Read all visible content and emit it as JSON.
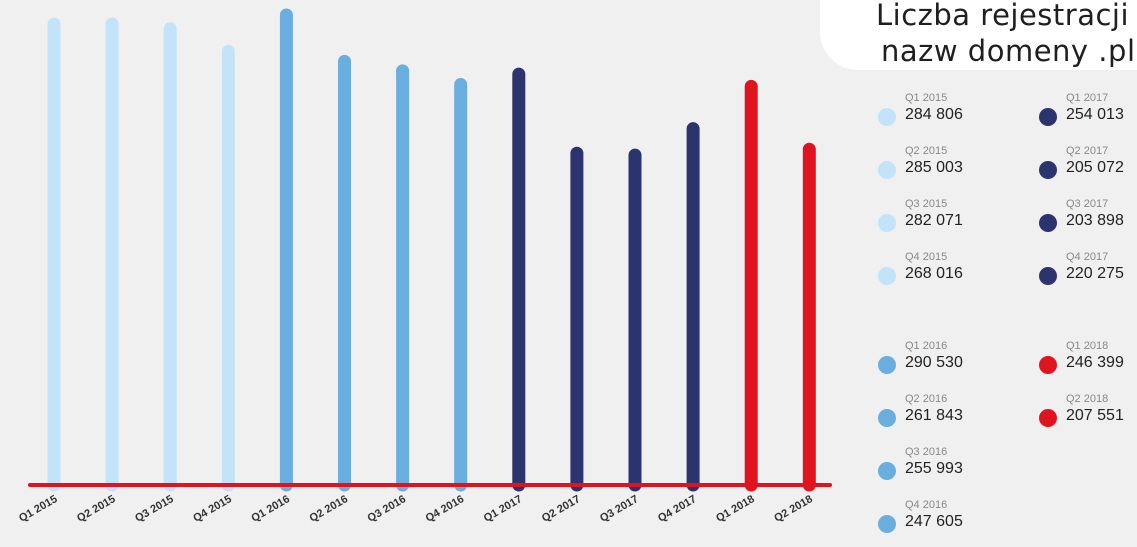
{
  "title": {
    "line1": "Liczba rejestracji",
    "line2": "nazw domeny .pl"
  },
  "colors": {
    "background": "#f0f0f0",
    "baseline": "#e0141e",
    "c2015": "#c3e3f8",
    "c2016": "#6aaee0",
    "c2017": "#2c346f",
    "c2018": "#e0141e"
  },
  "chart_data": {
    "type": "bar",
    "categories": [
      "Q1 2015",
      "Q2 2015",
      "Q3 2015",
      "Q4 2015",
      "Q1 2016",
      "Q2 2016",
      "Q3 2016",
      "Q4 2016",
      "Q1 2017",
      "Q2 2017",
      "Q3 2017",
      "Q4 2017",
      "Q1 2018",
      "Q2 2018"
    ],
    "values": [
      284806,
      285003,
      282071,
      268016,
      290530,
      261843,
      255993,
      247605,
      254013,
      205072,
      203898,
      220275,
      246399,
      207551
    ],
    "bar_colors": [
      "#c3e3f8",
      "#c3e3f8",
      "#c3e3f8",
      "#c3e3f8",
      "#6aaee0",
      "#6aaee0",
      "#6aaee0",
      "#6aaee0",
      "#2c346f",
      "#2c346f",
      "#2c346f",
      "#2c346f",
      "#e0141e",
      "#e0141e"
    ],
    "title": "Liczba rejestracji nazw domeny .pl",
    "xlabel": "",
    "ylabel": "",
    "grid": false
  },
  "legend": [
    {
      "period": "Q1 2015",
      "value": "284 806",
      "color": "#c3e3f8"
    },
    {
      "period": "Q2 2015",
      "value": "285 003",
      "color": "#c3e3f8"
    },
    {
      "period": "Q3 2015",
      "value": "282 071",
      "color": "#c3e3f8"
    },
    {
      "period": "Q4 2015",
      "value": "268 016",
      "color": "#c3e3f8"
    },
    {
      "period": "Q1 2016",
      "value": "290 530",
      "color": "#6aaee0"
    },
    {
      "period": "Q2 2016",
      "value": "261 843",
      "color": "#6aaee0"
    },
    {
      "period": "Q3 2016",
      "value": "255 993",
      "color": "#6aaee0"
    },
    {
      "period": "Q4 2016",
      "value": "247 605",
      "color": "#6aaee0"
    },
    {
      "period": "Q1 2017",
      "value": "254 013",
      "color": "#2c346f"
    },
    {
      "period": "Q2 2017",
      "value": "205 072",
      "color": "#2c346f"
    },
    {
      "period": "Q3 2017",
      "value": "203 898",
      "color": "#2c346f"
    },
    {
      "period": "Q4 2017",
      "value": "220 275",
      "color": "#2c346f"
    },
    {
      "period": "Q1 2018",
      "value": "246 399",
      "color": "#e0141e"
    },
    {
      "period": "Q2 2018",
      "value": "207 551",
      "color": "#e0141e"
    }
  ]
}
